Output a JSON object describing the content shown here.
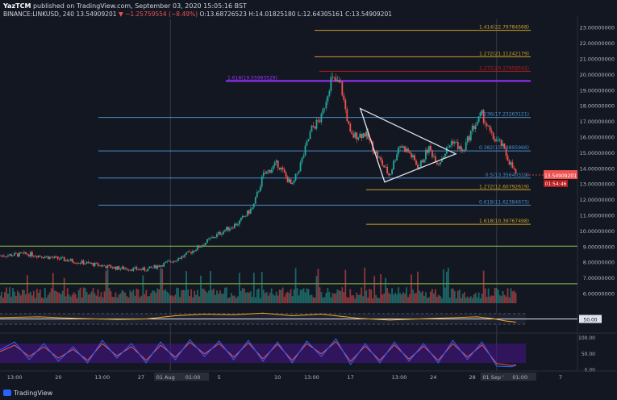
{
  "header": {
    "publisher": "YazTCM",
    "published_text": "published on TradingView.com, September 03, 2020 15:05:16 BST",
    "symbol": "BINANCE:LINKUSD, 240",
    "last": "13.54909201",
    "change": "▼ −1.25759554 (−8.49%)",
    "o": "O:13.68726523",
    "h": "H:14.01825180",
    "l": "L:12.64305161",
    "c": "C:13.54909201"
  },
  "footer": {
    "brand": "TradingView"
  },
  "colors": {
    "background": "#131722",
    "up": "#26a69a",
    "down": "#ef5350",
    "fib_gold": "#c9a227",
    "fib_blue": "#4a8fc9",
    "fib_purple": "#9b30ff",
    "fib_red": "#b71c1c",
    "fib_green": "#8bc34a",
    "rsi": "#f5a623",
    "stoch_k": "#2962ff",
    "stoch_d": "#ef5350",
    "stoch_band": "#4a148c"
  },
  "chart_data": {
    "type": "candlestick",
    "y_axis": {
      "range": [
        5.25,
        23.5
      ],
      "ticks": [
        "23.00000000",
        "22.00000000",
        "21.00000000",
        "20.00000000",
        "19.00000000",
        "18.00000000",
        "17.00000000",
        "16.00000000",
        "15.00000000",
        "14.00000000",
        "13.00000000",
        "12.00000000",
        "11.00000000",
        "10.00000000",
        "9.00000000",
        "8.00000000",
        "7.00000000",
        "6.00000000"
      ],
      "tick_values": [
        23,
        22,
        21,
        20,
        19,
        18,
        17,
        16,
        15,
        14,
        13,
        12,
        11,
        10,
        9,
        8,
        7,
        6
      ]
    },
    "x_axis": {
      "range": [
        0,
        54
      ],
      "ticks": [
        "13:00",
        "20",
        "13:00",
        "27",
        "01 Aug '20",
        "01:00",
        "5",
        "10",
        "13:00",
        "17",
        "13:00",
        "24",
        "28",
        "01 Sep '20",
        "01:00",
        "7"
      ],
      "tick_days": [
        1.5,
        6,
        10.5,
        14.5,
        17.5,
        19.8,
        22.5,
        28.5,
        32,
        36,
        41,
        44.5,
        48.5,
        51,
        53.4,
        58
      ]
    },
    "price_path": [
      [
        0,
        8.4
      ],
      [
        3,
        8.5
      ],
      [
        6,
        8.2
      ],
      [
        9,
        7.9
      ],
      [
        12,
        7.6
      ],
      [
        15,
        7.5
      ],
      [
        17,
        7.9
      ],
      [
        19,
        8.4
      ],
      [
        21,
        9.2
      ],
      [
        23,
        10.0
      ],
      [
        24.5,
        10.5
      ],
      [
        26,
        11.5
      ],
      [
        27,
        13.5
      ],
      [
        28.5,
        14.3
      ],
      [
        30,
        12.8
      ],
      [
        31,
        14.5
      ],
      [
        32,
        16.5
      ],
      [
        33,
        17.2
      ],
      [
        34,
        19.7
      ],
      [
        35,
        19.3
      ],
      [
        36,
        16.0
      ],
      [
        37.5,
        16.2
      ],
      [
        39,
        14.5
      ],
      [
        40,
        13.5
      ],
      [
        41,
        15.5
      ],
      [
        42,
        15.0
      ],
      [
        43,
        14.0
      ],
      [
        44,
        15.3
      ],
      [
        45,
        14.3
      ],
      [
        46.5,
        15.8
      ],
      [
        47.5,
        15.0
      ],
      [
        48.5,
        16.5
      ],
      [
        49.5,
        17.4
      ],
      [
        50.5,
        16.0
      ],
      [
        51.5,
        15.5
      ],
      [
        52,
        14.8
      ],
      [
        53,
        13.55
      ]
    ],
    "last_price": "13.54909201",
    "countdown": "01:54:46",
    "fib_levels": [
      {
        "label": "1.414(22.79784568)",
        "value": 22.798,
        "color": "#c9a227"
      },
      {
        "label": "1.272(21.11242179)",
        "value": 21.112,
        "color": "#c9a227"
      },
      {
        "label": "1.272(20.17958542)",
        "value": 20.18,
        "color": "#b71c1c"
      },
      {
        "label": "1.618(19.55983529)",
        "value": 19.56,
        "color": "#9b30ff"
      },
      {
        "label": "0.236(17.23263121)",
        "value": 17.233,
        "color": "#4a8fc9"
      },
      {
        "label": "0.382(15.08895966)",
        "value": 15.089,
        "color": "#4a8fc9"
      },
      {
        "label": "0.5(13.35640319)",
        "value": 13.356,
        "color": "#4a8fc9"
      },
      {
        "label": "1.272(12.60792619)",
        "value": 12.608,
        "color": "#c9a227"
      },
      {
        "label": "0.618(11.62384673)",
        "value": 11.624,
        "color": "#4a8fc9"
      },
      {
        "label": "1.618(10.39767498)",
        "value": 10.398,
        "color": "#c9a227"
      }
    ],
    "support_lines": [
      {
        "value": 9.0,
        "color": "#8bc34a"
      },
      {
        "value": 6.6,
        "color": "#8bc34a"
      }
    ],
    "triangle": [
      [
        37,
        17.8
      ],
      [
        46.8,
        14.9
      ],
      [
        39.5,
        13.1
      ]
    ],
    "rsi": {
      "ticks": [
        "50.00"
      ],
      "levels": [
        70,
        50,
        30
      ],
      "path": [
        [
          0,
          55
        ],
        [
          4,
          58
        ],
        [
          8,
          52
        ],
        [
          12,
          48
        ],
        [
          15,
          50
        ],
        [
          18,
          62
        ],
        [
          21,
          68
        ],
        [
          24,
          66
        ],
        [
          27,
          72
        ],
        [
          30,
          62
        ],
        [
          33,
          68
        ],
        [
          35,
          60
        ],
        [
          37,
          52
        ],
        [
          40,
          46
        ],
        [
          43,
          50
        ],
        [
          46,
          54
        ],
        [
          49,
          58
        ],
        [
          50.5,
          52
        ],
        [
          52,
          42
        ],
        [
          53,
          38
        ]
      ]
    },
    "stoch": {
      "ticks": [
        "100.00",
        "50.00",
        "0.00"
      ],
      "k_path": [
        [
          0,
          60
        ],
        [
          1.5,
          85
        ],
        [
          3,
          30
        ],
        [
          4.5,
          80
        ],
        [
          6,
          25
        ],
        [
          7.5,
          70
        ],
        [
          9,
          20
        ],
        [
          10.5,
          90
        ],
        [
          12,
          35
        ],
        [
          13.5,
          80
        ],
        [
          15,
          20
        ],
        [
          16.5,
          85
        ],
        [
          18,
          30
        ],
        [
          19.5,
          92
        ],
        [
          21,
          40
        ],
        [
          22.5,
          88
        ],
        [
          24,
          30
        ],
        [
          25.5,
          90
        ],
        [
          27,
          25
        ],
        [
          28.5,
          85
        ],
        [
          30,
          20
        ],
        [
          31.5,
          88
        ],
        [
          33,
          40
        ],
        [
          34.5,
          95
        ],
        [
          36,
          15
        ],
        [
          37.5,
          80
        ],
        [
          39,
          20
        ],
        [
          40.5,
          85
        ],
        [
          42,
          25
        ],
        [
          43.5,
          80
        ],
        [
          45,
          20
        ],
        [
          46.5,
          90
        ],
        [
          48,
          30
        ],
        [
          49.5,
          85
        ],
        [
          51,
          10
        ],
        [
          52.5,
          8
        ],
        [
          53,
          12
        ]
      ],
      "d_path": [
        [
          0,
          55
        ],
        [
          1.5,
          75
        ],
        [
          3,
          40
        ],
        [
          4.5,
          70
        ],
        [
          6,
          35
        ],
        [
          7.5,
          62
        ],
        [
          9,
          28
        ],
        [
          10.5,
          80
        ],
        [
          12,
          42
        ],
        [
          13.5,
          70
        ],
        [
          15,
          28
        ],
        [
          16.5,
          75
        ],
        [
          18,
          38
        ],
        [
          19.5,
          84
        ],
        [
          21,
          48
        ],
        [
          22.5,
          80
        ],
        [
          24,
          38
        ],
        [
          25.5,
          82
        ],
        [
          27,
          33
        ],
        [
          28.5,
          78
        ],
        [
          30,
          28
        ],
        [
          31.5,
          80
        ],
        [
          33,
          48
        ],
        [
          34.5,
          86
        ],
        [
          36,
          25
        ],
        [
          37.5,
          72
        ],
        [
          39,
          28
        ],
        [
          40.5,
          76
        ],
        [
          42,
          32
        ],
        [
          43.5,
          72
        ],
        [
          45,
          28
        ],
        [
          46.5,
          80
        ],
        [
          48,
          38
        ],
        [
          49.5,
          76
        ],
        [
          51,
          18
        ],
        [
          52.5,
          12
        ],
        [
          53,
          14
        ]
      ]
    }
  }
}
